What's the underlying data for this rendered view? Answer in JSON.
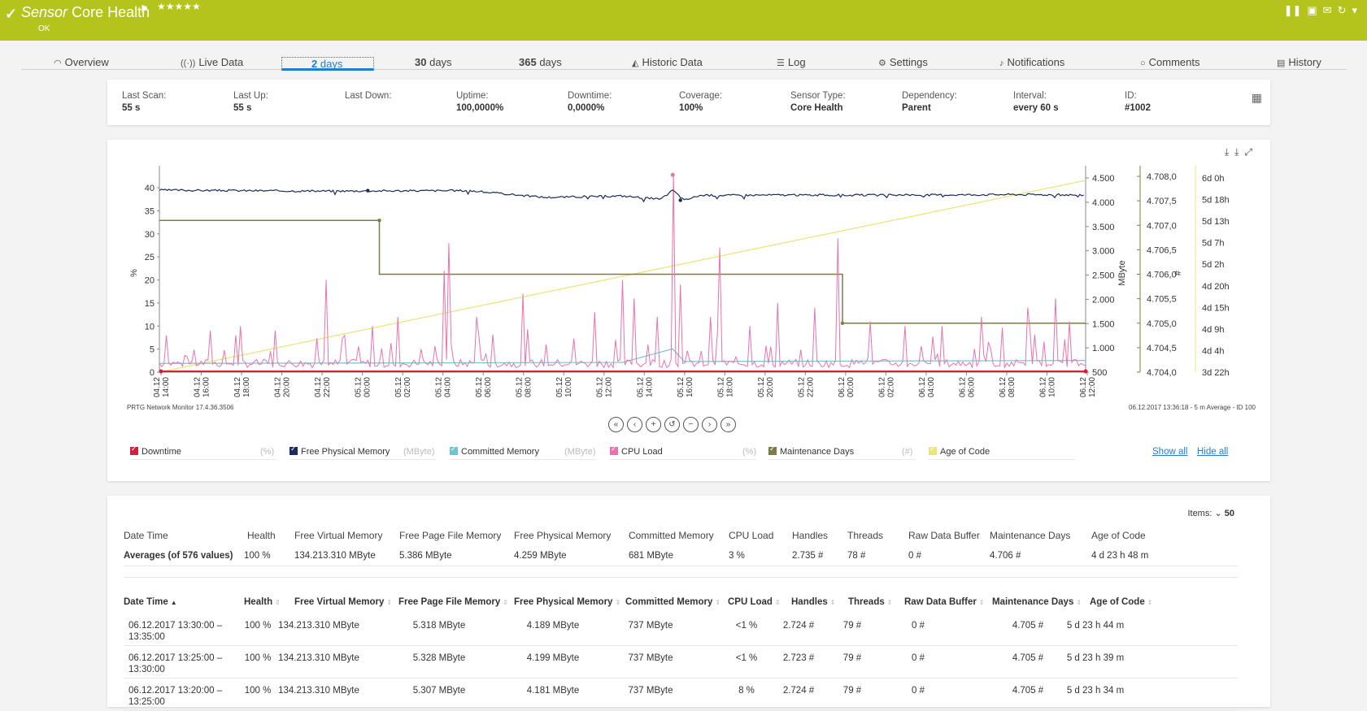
{
  "header": {
    "title_prefix": "Sensor",
    "title": "Core Health",
    "status": "OK",
    "stars": "★★★★★"
  },
  "tabs": [
    {
      "label": "Overview",
      "icon": "gauge-icon"
    },
    {
      "label": "Live Data",
      "icon": "broadcast-icon"
    },
    {
      "num": "2",
      "unit": "days"
    },
    {
      "num": "30",
      "unit": "days"
    },
    {
      "num": "365",
      "unit": "days"
    },
    {
      "label": "Historic Data",
      "icon": "area-chart-icon"
    },
    {
      "label": "Log",
      "icon": "list-icon"
    },
    {
      "label": "Settings",
      "icon": "gear-icon"
    },
    {
      "label": "Notifications",
      "icon": "bell-icon"
    },
    {
      "label": "Comments",
      "icon": "speech-bubble-icon"
    },
    {
      "label": "History",
      "icon": "document-icon"
    }
  ],
  "info": [
    {
      "label": "Last Scan:",
      "value": "55 s"
    },
    {
      "label": "Last Up:",
      "value": "55 s"
    },
    {
      "label": "Last Down:",
      "value": ""
    },
    {
      "label": "Uptime:",
      "value": "100,0000%"
    },
    {
      "label": "Downtime:",
      "value": "0,0000%"
    },
    {
      "label": "Coverage:",
      "value": "100%"
    },
    {
      "label": "Sensor Type:",
      "value": "Core Health"
    },
    {
      "label": "Dependency:",
      "value": "Parent"
    },
    {
      "label": "Interval:",
      "value": "every 60 s"
    },
    {
      "label": "ID:",
      "value": "#1002"
    }
  ],
  "graph": {
    "footer_left": "PRTG Network Monitor 17.4.36.3506",
    "footer_right": "06.12.2017 13:36:18 - 5 m Average - ID 100",
    "show_all": "Show all",
    "hide_all": "Hide all"
  },
  "legend": [
    {
      "name": "Downtime",
      "unit": "(%)",
      "color": "#d0213a"
    },
    {
      "name": "Free Physical Memory",
      "unit": "(MByte)",
      "color": "#1b2a5c"
    },
    {
      "name": "Committed Memory",
      "unit": "(MByte)",
      "color": "#6fc5d0"
    },
    {
      "name": "CPU Load",
      "unit": "(%)",
      "color": "#e673b0"
    },
    {
      "name": "Maintenance Days",
      "unit": "(#)",
      "color": "#7e7b45"
    },
    {
      "name": "Age of Code",
      "unit": "",
      "color": "#ebe47a"
    }
  ],
  "chart_data": {
    "type": "line",
    "ylabel": "%",
    "y2label": "MByte",
    "y3label": "#",
    "ylim": [
      0,
      43
    ],
    "y_ticks": [
      "0",
      "5",
      "10",
      "15",
      "20",
      "25",
      "30",
      "35",
      "40"
    ],
    "y2_ticks": [
      "500",
      "1.000",
      "1.500",
      "2.000",
      "2.500",
      "3.000",
      "3.500",
      "4.000",
      "4.500"
    ],
    "y3_ticks": [
      "4.704,0",
      "4.704,5",
      "4.705,0",
      "4.705,5",
      "4.706,0",
      "4.706,5",
      "4.707,0",
      "4.707,5",
      "4.708,0"
    ],
    "y4_ticks": [
      "3d 22h",
      "4d 4h",
      "4d 9h",
      "4d 15h",
      "4d 20h",
      "5d 2h",
      "5d 7h",
      "5d 13h",
      "5d 18h",
      "6d 0h"
    ],
    "x_ticks": [
      "04.12 14:00",
      "04.12 16:00",
      "04.12 18:00",
      "04.12 20:00",
      "04.12 22:00",
      "05.12 00:00",
      "05.12 02:00",
      "05.12 04:00",
      "05.12 06:00",
      "05.12 08:00",
      "05.12 10:00",
      "05.12 12:00",
      "05.12 14:00",
      "05.12 16:00",
      "05.12 18:00",
      "05.12 20:00",
      "05.12 22:00",
      "06.12 00:00",
      "06.12 02:00",
      "06.12 04:00",
      "06.12 06:00",
      "06.12 08:00",
      "06.12 10:00",
      "06.12 12:00"
    ],
    "series": [
      {
        "name": "Free Physical Memory",
        "unit": "MByte",
        "points": [
          [
            0,
            4250
          ],
          [
            4,
            4230
          ],
          [
            8,
            4240
          ],
          [
            10,
            4100
          ],
          [
            12,
            4130
          ],
          [
            13,
            4060
          ],
          [
            13.3,
            4250
          ],
          [
            13.6,
            4040
          ],
          [
            14,
            4140
          ],
          [
            16,
            4150
          ],
          [
            18,
            4145
          ],
          [
            20,
            4150
          ],
          [
            22,
            4160
          ],
          [
            24,
            4150
          ]
        ]
      },
      {
        "name": "Committed Memory",
        "unit": "MByte",
        "points": [
          [
            0,
            680
          ],
          [
            12,
            700
          ],
          [
            13.3,
            980
          ],
          [
            13.6,
            720
          ],
          [
            24,
            740
          ]
        ]
      },
      {
        "name": "Maintenance Days",
        "unit": "#",
        "points": [
          [
            0,
            4707.1
          ],
          [
            5.7,
            4707.1
          ],
          [
            5.7,
            4706.0
          ],
          [
            17.7,
            4706.0
          ],
          [
            17.7,
            4705.0
          ],
          [
            24,
            4705.0
          ]
        ]
      },
      {
        "name": "Age of Code",
        "points": [
          [
            0,
            3.92
          ],
          [
            24,
            6.0
          ]
        ]
      },
      {
        "name": "CPU Load",
        "unit": "%",
        "peaks": [
          [
            0.2,
            8
          ],
          [
            1.3,
            9
          ],
          [
            2.0,
            8
          ],
          [
            3.0,
            9
          ],
          [
            4.3,
            20
          ],
          [
            4.8,
            8
          ],
          [
            5.5,
            10
          ],
          [
            6.2,
            12
          ],
          [
            6.8,
            5
          ],
          [
            7.4,
            22
          ],
          [
            7.5,
            28
          ],
          [
            8.2,
            12
          ],
          [
            9.4,
            17
          ],
          [
            10.0,
            6
          ],
          [
            11.3,
            13
          ],
          [
            11.8,
            7
          ],
          [
            12.0,
            20
          ],
          [
            12.3,
            16
          ],
          [
            12.9,
            12
          ],
          [
            13.3,
            43
          ],
          [
            13.5,
            19
          ],
          [
            14.3,
            12
          ],
          [
            14.5,
            27
          ],
          [
            15.3,
            10
          ],
          [
            16.0,
            15
          ],
          [
            17.0,
            14
          ],
          [
            17.6,
            29
          ],
          [
            18.4,
            11
          ],
          [
            19.3,
            10
          ],
          [
            20.3,
            10
          ],
          [
            21.3,
            12
          ],
          [
            22.5,
            14
          ],
          [
            23.2,
            16
          ],
          [
            23.6,
            11
          ]
        ],
        "baseline": 1
      }
    ]
  },
  "table": {
    "items_label": "Items:",
    "items_value": "50",
    "summary_headers": [
      "Date Time",
      "Health",
      "Free Virtual Memory",
      "Free Page File Memory",
      "Free Physical Memory",
      "Committed Memory",
      "CPU Load",
      "Handles",
      "Threads",
      "Raw Data Buffer",
      "Maintenance Days",
      "Age of Code"
    ],
    "averages": [
      "Averages (of 576 values)",
      "100 %",
      "134.213.310 MByte",
      "5.386 MByte",
      "4.259 MByte",
      "681 MByte",
      "3 %",
      "2.735 #",
      "78 #",
      "0 #",
      "4.706 #",
      "4 d 23 h 48 m"
    ],
    "columns": [
      "Date Time",
      "Health",
      "Free Virtual Memory",
      "Free Page File Memory",
      "Free Physical Memory",
      "Committed Memory",
      "CPU Load",
      "Handles",
      "Threads",
      "Raw Data Buffer",
      "Maintenance Days",
      "Age of Code"
    ],
    "rows": [
      {
        "dt1": "06.12.2017 13:30:00 –",
        "dt2": "13:35:00",
        "vals": [
          "100 %",
          "134.213.310 MByte",
          "5.318 MByte",
          "4.189 MByte",
          "737 MByte",
          "<1 %",
          "2.724 #",
          "79 #",
          "0 #",
          "4.705 #",
          "5 d 23 h 44 m"
        ]
      },
      {
        "dt1": "06.12.2017 13:25:00 –",
        "dt2": "13:30:00",
        "vals": [
          "100 %",
          "134.213.310 MByte",
          "5.328 MByte",
          "4.199 MByte",
          "737 MByte",
          "<1 %",
          "2.723 #",
          "79 #",
          "0 #",
          "4.705 #",
          "5 d 23 h 39 m"
        ]
      },
      {
        "dt1": "06.12.2017 13:20:00 –",
        "dt2": "13:25:00",
        "vals": [
          "100 %",
          "134.213.310 MByte",
          "5.307 MByte",
          "4.181 MByte",
          "737 MByte",
          "8 %",
          "2.724 #",
          "79 #",
          "0 #",
          "4.705 #",
          "5 d 23 h 34 m"
        ]
      }
    ]
  }
}
